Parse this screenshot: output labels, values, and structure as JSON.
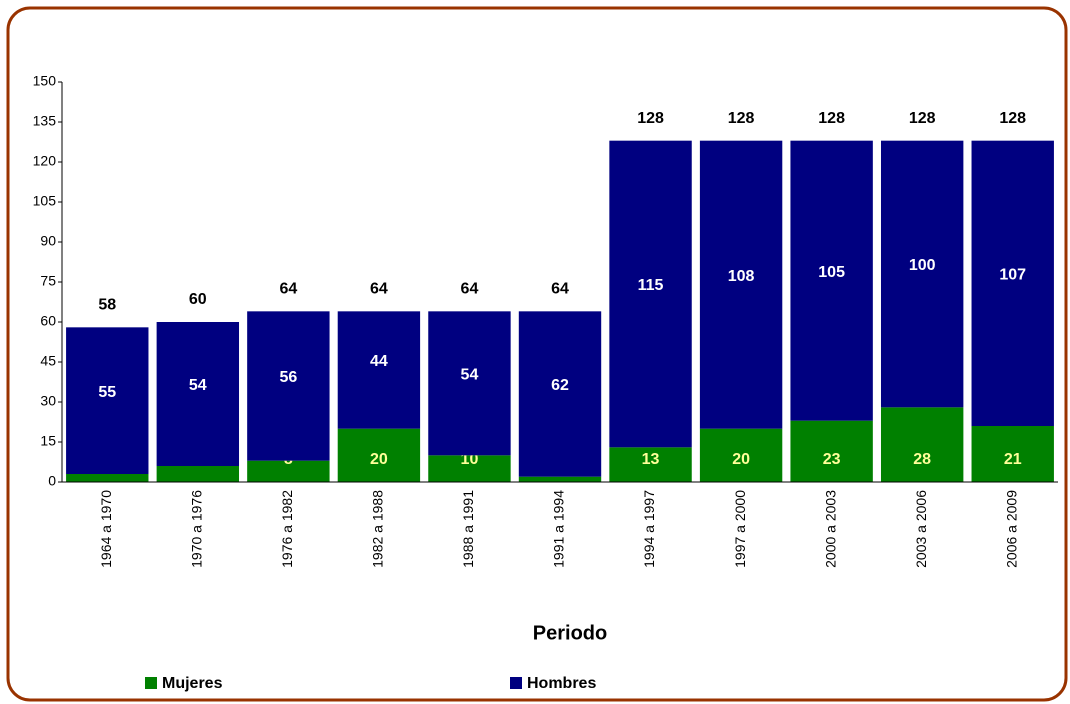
{
  "chart_data": {
    "type": "stacked_bar",
    "categories": [
      "1964 a 1970",
      "1970 a 1976",
      "1976 a 1982",
      "1982 a 1988",
      "1988 a 1991",
      "1991 a 1994",
      "1994 a 1997",
      "1997 a 2000",
      "2000 a 2003",
      "2003 a 2006",
      "2006 a 2009"
    ],
    "series": [
      {
        "name": "Mujeres",
        "color": "#008000",
        "label_color": "#ffff99",
        "values": [
          3,
          6,
          8,
          20,
          10,
          2,
          13,
          20,
          23,
          28,
          21
        ]
      },
      {
        "name": "Hombres",
        "color": "#000080",
        "label_color": "#ffffff",
        "values": [
          55,
          54,
          56,
          44,
          54,
          62,
          115,
          108,
          105,
          100,
          107
        ]
      }
    ],
    "totals": [
      58,
      60,
      64,
      64,
      64,
      64,
      128,
      128,
      128,
      128,
      128
    ],
    "x_label": "Periodo",
    "ylim": [
      0,
      150
    ],
    "yticks": [
      0,
      15,
      30,
      45,
      60,
      75,
      90,
      105,
      120,
      135,
      150
    ]
  }
}
